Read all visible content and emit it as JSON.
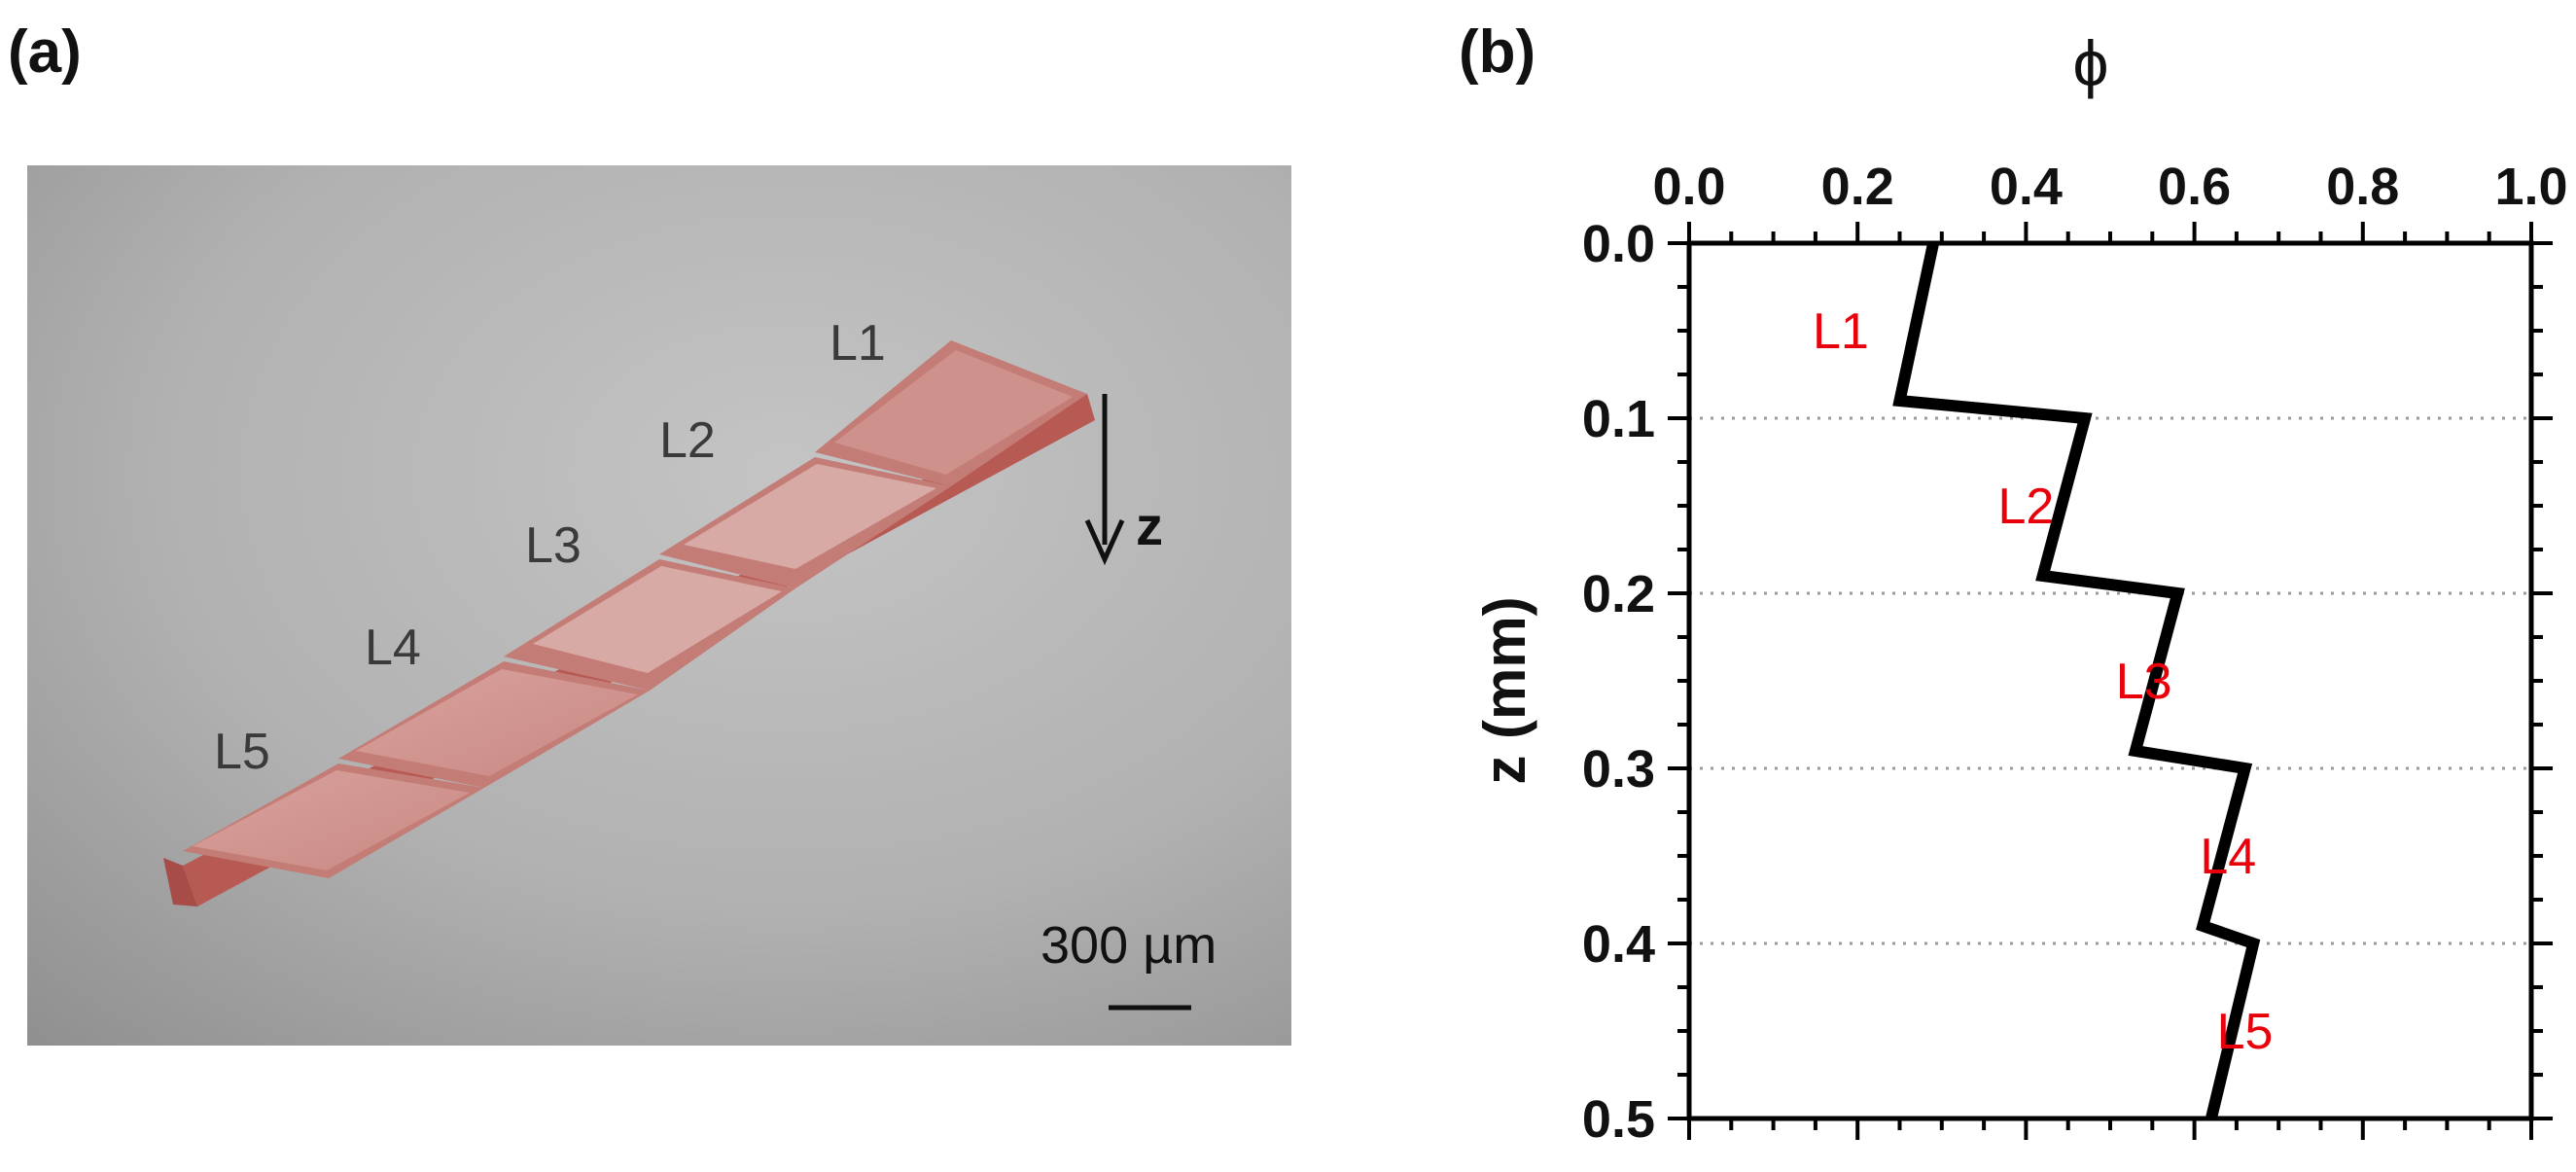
{
  "panel_a": {
    "label": "(a)",
    "layer_labels": [
      "L1",
      "L2",
      "L3",
      "L4",
      "L5"
    ],
    "z_arrow_label": "z",
    "scale_bar_label": "300 µm"
  },
  "panel_b": {
    "label": "(b)"
  },
  "chart_data": {
    "type": "line",
    "xlabel": "ϕ",
    "ylabel": "z (mm)",
    "xlim": [
      0.0,
      1.0
    ],
    "ylim": [
      0.0,
      0.5
    ],
    "y_inverted": true,
    "x_axis_position": "top",
    "x_ticks": [
      "0.0",
      "0.2",
      "0.4",
      "0.6",
      "0.8",
      "1.0"
    ],
    "y_ticks": [
      "0.0",
      "0.1",
      "0.2",
      "0.3",
      "0.4",
      "0.5"
    ],
    "grid": "horizontal dotted lines at z = 0.1, 0.2, 0.3, 0.4",
    "line_color": "#000000",
    "x": [
      0.29,
      0.25,
      0.25,
      0.47,
      0.42,
      0.42,
      0.58,
      0.53,
      0.53,
      0.66,
      0.61,
      0.61,
      0.67,
      0.62
    ],
    "y": [
      0.0,
      0.09,
      0.09,
      0.1,
      0.19,
      0.19,
      0.2,
      0.29,
      0.29,
      0.3,
      0.39,
      0.39,
      0.4,
      0.5
    ],
    "annotations": [
      {
        "text": "L1",
        "x": 0.18,
        "z": 0.05
      },
      {
        "text": "L2",
        "x": 0.4,
        "z": 0.15
      },
      {
        "text": "L3",
        "x": 0.54,
        "z": 0.25
      },
      {
        "text": "L4",
        "x": 0.64,
        "z": 0.35
      },
      {
        "text": "L5",
        "x": 0.66,
        "z": 0.45
      }
    ],
    "annotation_color": "#e8000b"
  }
}
